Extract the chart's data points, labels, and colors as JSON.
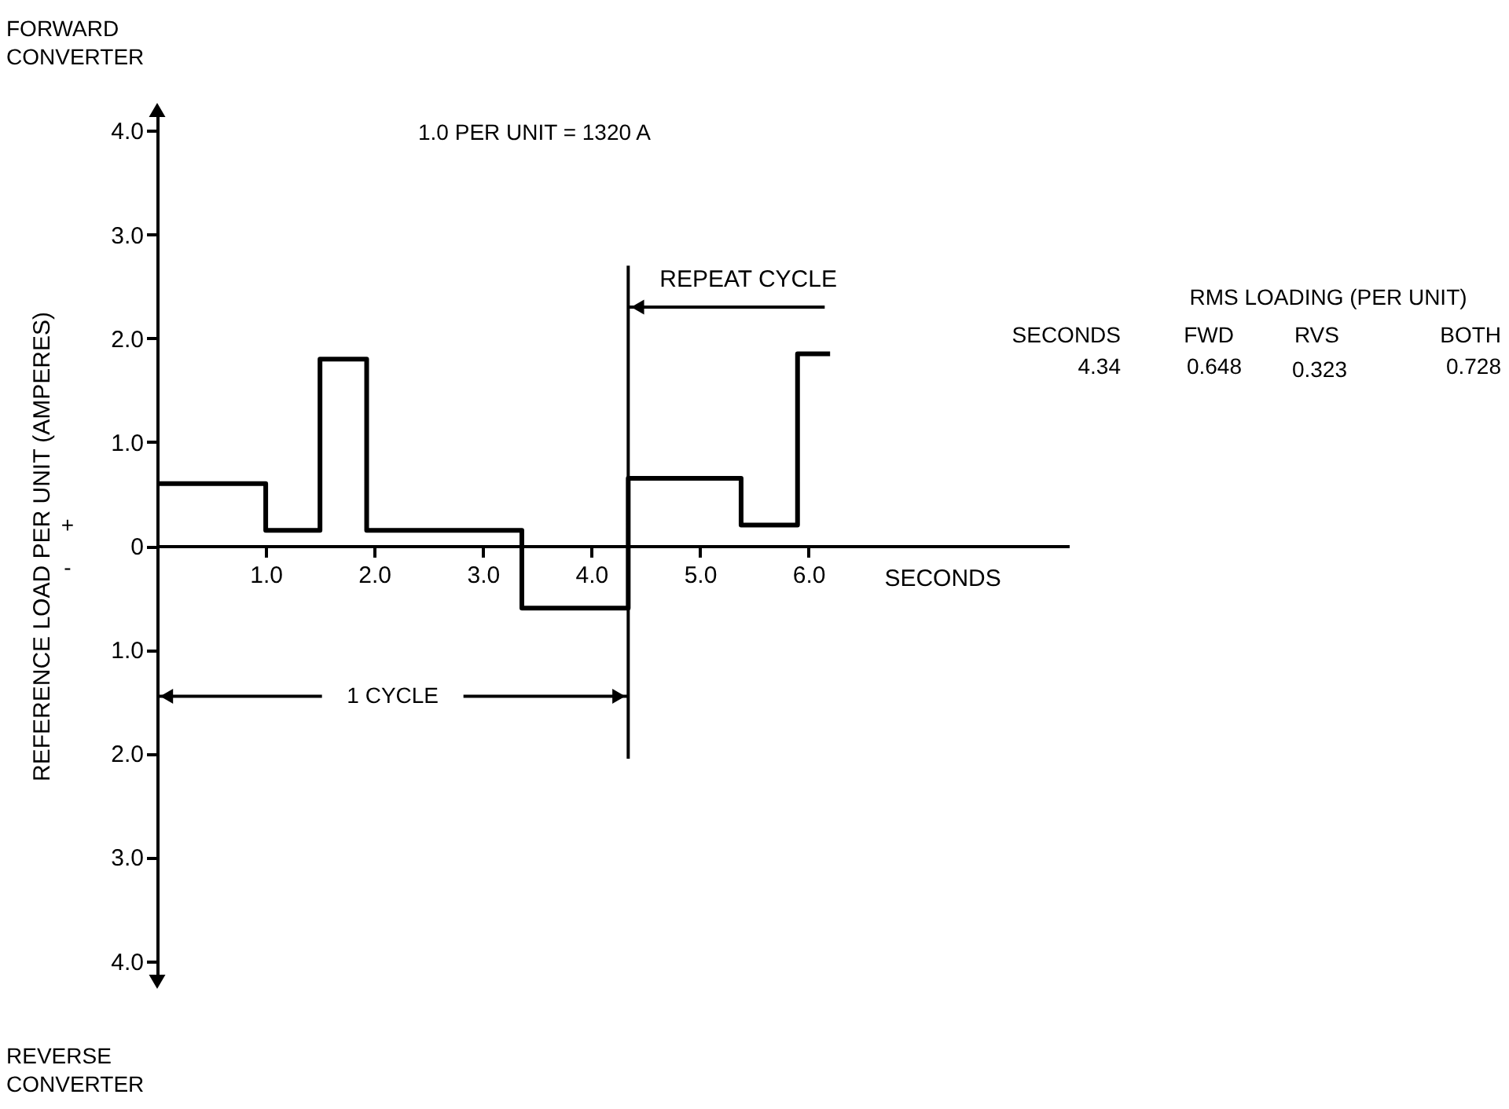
{
  "chart_data": {
    "type": "step",
    "ylabel": "REFERENCE LOAD PER UNIT (AMPERES)",
    "xlabel": "SECONDS",
    "x": [
      0,
      1.0,
      1.5,
      1.93,
      3.36,
      4.34,
      5.38,
      5.9,
      6.2
    ],
    "series": [
      {
        "color": "#000000",
        "values": [
          0.6,
          0.15,
          1.8,
          0.15,
          -0.6,
          0.65,
          0.2,
          1.85,
          1.85
        ]
      }
    ],
    "xlim": [
      0,
      8.4
    ],
    "ylim": [
      -4.2,
      4.2
    ],
    "xticks": [
      {
        "value": 1,
        "label": "1.0"
      },
      {
        "value": 2,
        "label": "2.0"
      },
      {
        "value": 3,
        "label": "3.0"
      },
      {
        "value": 4,
        "label": "4.0"
      },
      {
        "value": 5,
        "label": "5.0"
      },
      {
        "value": 6,
        "label": "6.0"
      }
    ],
    "yticks": [
      {
        "value": -4,
        "label": "4.0"
      },
      {
        "value": -3,
        "label": "3.0"
      },
      {
        "value": -2,
        "label": "2.0"
      },
      {
        "value": -1,
        "label": "1.0"
      },
      0,
      {
        "value": 1,
        "label": "1.0"
      },
      {
        "value": 2,
        "label": "2.0"
      },
      {
        "value": 3,
        "label": "3.0"
      },
      {
        "value": 4,
        "label": "4.0"
      }
    ],
    "ref_lines": [
      {
        "axis": "x",
        "value": 4.34,
        "color": "#000000"
      }
    ],
    "annotations": [
      "FORWARD CONVERTER",
      "REVERSE CONVERTER",
      "1.0 PER UNIT = 1320 A",
      {
        "text": "REPEAT CYCLE",
        "x": 4.34,
        "y": 2.3
      },
      {
        "text": "1 CYCLE",
        "x": 4.34,
        "y": -1.45
      },
      "RMS LOADING (PER UNIT)",
      "SECONDS",
      "FWD",
      "RVS",
      "BOTH",
      "4.34",
      "0.648",
      "0.323",
      "0.728",
      "+",
      "-"
    ],
    "grid": false,
    "marker": "none",
    "line_style": "solid"
  }
}
